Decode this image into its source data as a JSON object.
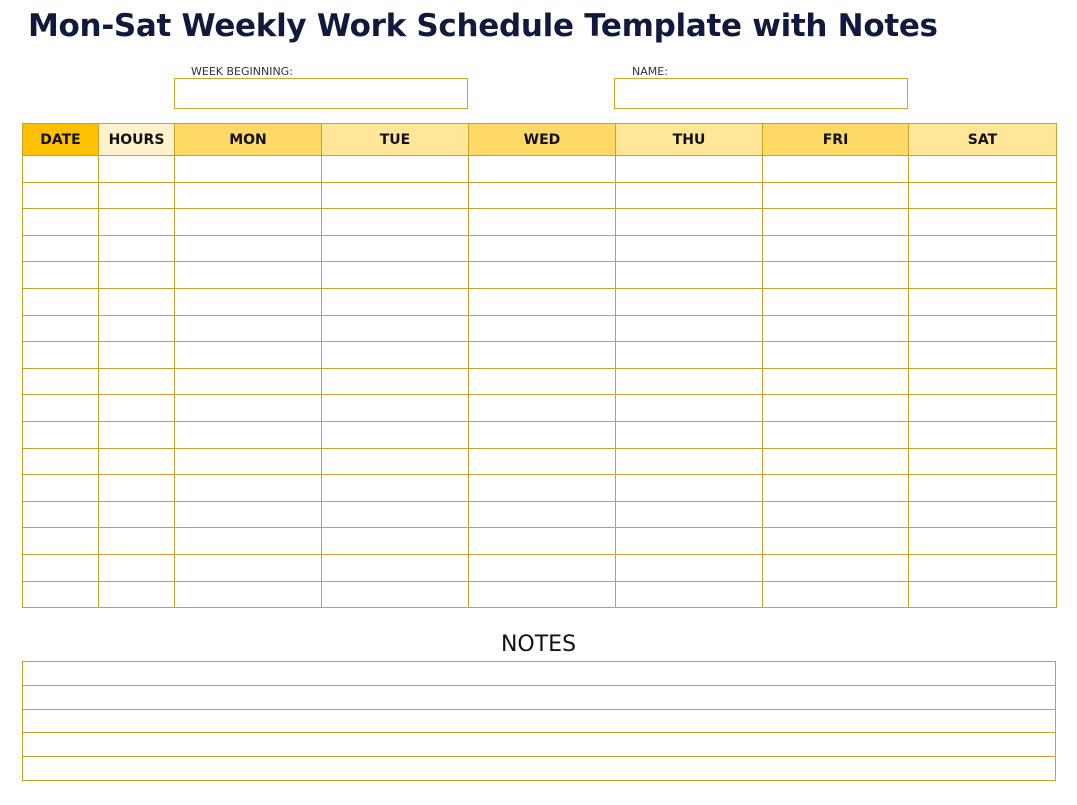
{
  "title": "Mon-Sat Weekly Work Schedule Template with Notes",
  "fields": {
    "week_beginning_label": "WEEK BEGINNING:",
    "week_beginning_value": "",
    "name_label": "NAME:",
    "name_value": ""
  },
  "schedule": {
    "columns": [
      {
        "label": "DATE",
        "color": "#FFC000"
      },
      {
        "label": "HOURS",
        "color": "#FFF2CC"
      },
      {
        "label": "MON",
        "color": "#FFD966"
      },
      {
        "label": "TUE",
        "color": "#FFE699"
      },
      {
        "label": "WED",
        "color": "#FFD966"
      },
      {
        "label": "THU",
        "color": "#FFE699"
      },
      {
        "label": "FRI",
        "color": "#FFD966"
      },
      {
        "label": "SAT",
        "color": "#FFE699"
      }
    ],
    "rows": [
      [
        "",
        "",
        "",
        "",
        "",
        "",
        "",
        ""
      ],
      [
        "",
        "",
        "",
        "",
        "",
        "",
        "",
        ""
      ],
      [
        "",
        "",
        "",
        "",
        "",
        "",
        "",
        ""
      ],
      [
        "",
        "",
        "",
        "",
        "",
        "",
        "",
        ""
      ],
      [
        "",
        "",
        "",
        "",
        "",
        "",
        "",
        ""
      ],
      [
        "",
        "",
        "",
        "",
        "",
        "",
        "",
        ""
      ],
      [
        "",
        "",
        "",
        "",
        "",
        "",
        "",
        ""
      ],
      [
        "",
        "",
        "",
        "",
        "",
        "",
        "",
        ""
      ],
      [
        "",
        "",
        "",
        "",
        "",
        "",
        "",
        ""
      ],
      [
        "",
        "",
        "",
        "",
        "",
        "",
        "",
        ""
      ],
      [
        "",
        "",
        "",
        "",
        "",
        "",
        "",
        ""
      ],
      [
        "",
        "",
        "",
        "",
        "",
        "",
        "",
        ""
      ],
      [
        "",
        "",
        "",
        "",
        "",
        "",
        "",
        ""
      ],
      [
        "",
        "",
        "",
        "",
        "",
        "",
        "",
        ""
      ],
      [
        "",
        "",
        "",
        "",
        "",
        "",
        "",
        ""
      ],
      [
        "",
        "",
        "",
        "",
        "",
        "",
        "",
        ""
      ],
      [
        "",
        "",
        "",
        "",
        "",
        "",
        "",
        ""
      ]
    ],
    "border_color": "#C9A227"
  },
  "notes": {
    "title": "NOTES",
    "lines": [
      "",
      "",
      "",
      "",
      ""
    ]
  }
}
